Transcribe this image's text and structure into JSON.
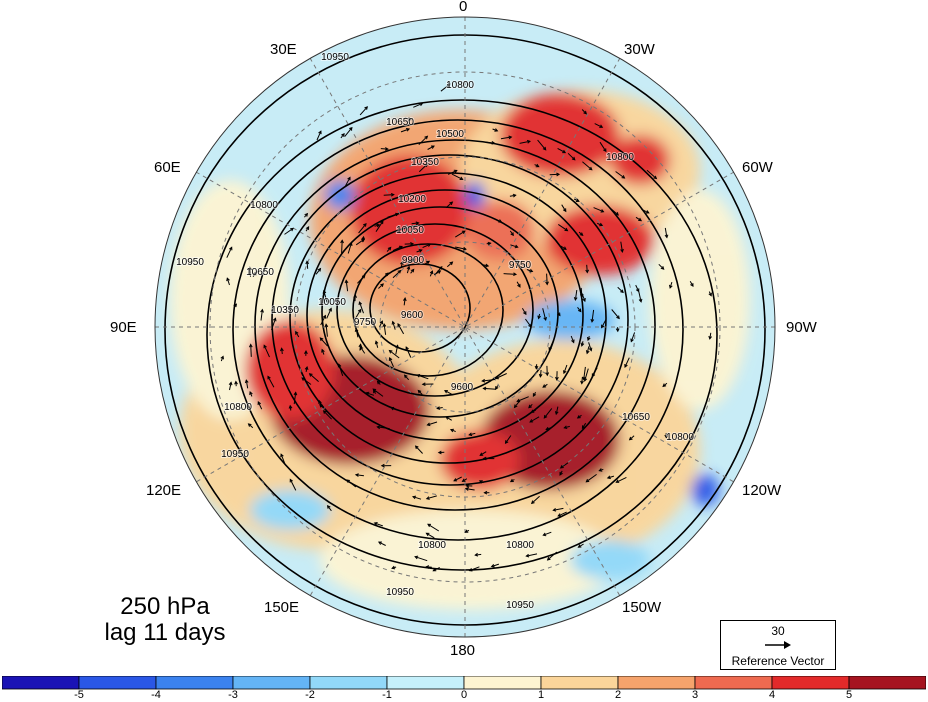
{
  "map": {
    "projection": "north-polar-stereographic",
    "longitude_labels": [
      {
        "text": "0",
        "lon": 0
      },
      {
        "text": "30W",
        "lon": -30
      },
      {
        "text": "60W",
        "lon": -60
      },
      {
        "text": "90W",
        "lon": -90
      },
      {
        "text": "120W",
        "lon": -120
      },
      {
        "text": "150W",
        "lon": -150
      },
      {
        "text": "180",
        "lon": 180
      },
      {
        "text": "150E",
        "lon": 150
      },
      {
        "text": "120E",
        "lon": 120
      },
      {
        "text": "90E",
        "lon": 90
      },
      {
        "text": "60E",
        "lon": 60
      },
      {
        "text": "30E",
        "lon": 30
      }
    ],
    "contour_labels": [
      "10950",
      "10800",
      "10650",
      "10500",
      "10350",
      "10200",
      "10050",
      "9900",
      "9750",
      "9600"
    ],
    "colors": {
      "ocean_background": "#c8ecf6",
      "land_outline": "#555555",
      "contour_line": "#000000",
      "grid_line": "#777777",
      "positive_anomaly": "#c81e1e",
      "negative_anomaly": "#3a8ee6"
    }
  },
  "title": {
    "line1": "250 hPa",
    "line2": "lag 11 days"
  },
  "reference_vector": {
    "magnitude": "30",
    "label": "Reference Vector"
  },
  "colorbar": {
    "levels": [
      -5,
      -4,
      -3,
      -2,
      -1,
      0,
      1,
      2,
      3,
      4,
      5
    ],
    "colors": [
      "#1a13b5",
      "#2a57e6",
      "#3b82ee",
      "#64b4f5",
      "#92d8f8",
      "#c5f0fb",
      "#fdf4d2",
      "#fbd59a",
      "#f5a36c",
      "#ee6a50",
      "#e32a2a",
      "#a61420"
    ],
    "tick_labels": [
      "-5",
      "-4",
      "-3",
      "-2",
      "-1",
      "0",
      "1",
      "2",
      "3",
      "4",
      "5"
    ]
  }
}
